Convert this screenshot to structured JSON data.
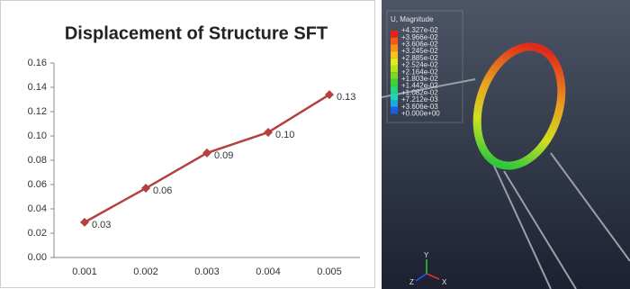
{
  "chart_data": {
    "type": "line",
    "title": "Displacement of Structure SFT",
    "categories": [
      "0.001",
      "0.002",
      "0.003",
      "0.004",
      "0.005"
    ],
    "values": [
      0.029,
      0.057,
      0.086,
      0.103,
      0.134
    ],
    "value_labels": [
      "0.03",
      "0.06",
      "0.09",
      "0.10",
      "0.13"
    ],
    "color": "#b5413e",
    "ylim": [
      0,
      0.16
    ],
    "yticks": [
      {
        "value": 0,
        "label": "0.00"
      },
      {
        "value": 0.02,
        "label": "0.02"
      },
      {
        "value": 0.04,
        "label": "0.04"
      },
      {
        "value": 0.06,
        "label": "0.06"
      },
      {
        "value": 0.08,
        "label": "0.08"
      },
      {
        "value": 0.1,
        "label": "0.10"
      },
      {
        "value": 0.12,
        "label": "0.12"
      },
      {
        "value": 0.14,
        "label": "0.14"
      },
      {
        "value": 0.16,
        "label": "0.16"
      }
    ],
    "grid": false
  },
  "contour_plot": {
    "legend_title": "U, Magnitude",
    "legend_labels": [
      "+4.327e-02",
      "+3.966e-02",
      "+3.606e-02",
      "+3.245e-02",
      "+2.885e-02",
      "+2.524e-02",
      "+2.164e-02",
      "+1.803e-02",
      "+1.442e-02",
      "+1.082e-02",
      "+7.212e-03",
      "+3.606e-03",
      "+0.000e+00"
    ],
    "band_colors": [
      "#e8201c",
      "#f2591a",
      "#f7901e",
      "#f8c21f",
      "#e6e81e",
      "#b6e01e",
      "#7fd820",
      "#3fd23a",
      "#2ad27a",
      "#24d0b6",
      "#1ea8e0",
      "#1a5fe6"
    ],
    "axis_labels": [
      "Y",
      "Z",
      "X"
    ]
  }
}
